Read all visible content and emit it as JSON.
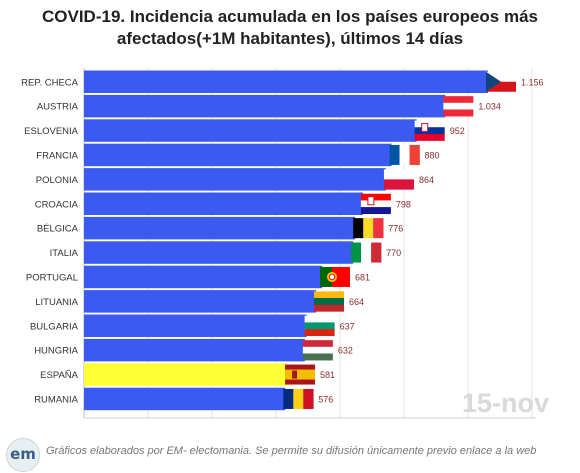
{
  "title_line1": "COVID-19. Incidencia acumulada en los países europeos más",
  "title_line2": "afectados(+1M habitantes), últimos 14 días",
  "date_stamp": "15-nov",
  "footer": {
    "logo": "em",
    "source": "Gráficos elaborados por EM- electomania. Se permite su difusión únicamente previo enlace a la web"
  },
  "colors": {
    "bar": "#3b5bf0",
    "highlight": "#ffff33",
    "value_label": "#8b2d2d",
    "grid": "#e2e2e2"
  },
  "chart_data": {
    "type": "bar",
    "orientation": "horizontal",
    "categories": [
      "REP. CHECA",
      "AUSTRIA",
      "ESLOVENIA",
      "FRANCIA",
      "POLONIA",
      "CROACIA",
      "BÉLGICA",
      "ITALIA",
      "PORTUGAL",
      "LITUANIA",
      "BULGARIA",
      "HUNGRIA",
      "ESPAÑA",
      "RUMANIA"
    ],
    "values": [
      1156,
      1034,
      952,
      880,
      864,
      798,
      776,
      770,
      681,
      664,
      637,
      632,
      581,
      576
    ],
    "value_labels": [
      "1.156",
      "1.034",
      "952",
      "880",
      "864",
      "798",
      "776",
      "770",
      "681",
      "664",
      "637",
      "632",
      "581",
      "576"
    ],
    "highlight": "ESPAÑA",
    "xlim": [
      0,
      1156
    ],
    "grid": "vertical",
    "flags": [
      {
        "icon": "czech-flag-icon",
        "type": "cz"
      },
      {
        "icon": "austria-flag-icon",
        "type": "h",
        "colors": [
          "#ed2939",
          "#ffffff",
          "#ed2939"
        ]
      },
      {
        "icon": "slovenia-flag-icon",
        "type": "h",
        "colors": [
          "#ffffff",
          "#0033a0",
          "#e4002b"
        ],
        "emblem": true
      },
      {
        "icon": "france-flag-icon",
        "type": "v",
        "colors": [
          "#0055a4",
          "#ffffff",
          "#ef4135"
        ]
      },
      {
        "icon": "poland-flag-icon",
        "type": "h",
        "colors": [
          "#ffffff",
          "#dc143c"
        ]
      },
      {
        "icon": "croatia-flag-icon",
        "type": "h",
        "colors": [
          "#ff0000",
          "#ffffff",
          "#171796"
        ],
        "emblem": true
      },
      {
        "icon": "belgium-flag-icon",
        "type": "v",
        "colors": [
          "#000000",
          "#fdda24",
          "#ef3340"
        ]
      },
      {
        "icon": "italy-flag-icon",
        "type": "v",
        "colors": [
          "#009246",
          "#ffffff",
          "#ce2b37"
        ]
      },
      {
        "icon": "portugal-flag-icon",
        "type": "pt"
      },
      {
        "icon": "lithuania-flag-icon",
        "type": "h",
        "colors": [
          "#fdb913",
          "#006a44",
          "#c1272d"
        ]
      },
      {
        "icon": "bulgaria-flag-icon",
        "type": "h",
        "colors": [
          "#ffffff",
          "#00966e",
          "#d62612"
        ]
      },
      {
        "icon": "hungary-flag-icon",
        "type": "h",
        "colors": [
          "#ce2939",
          "#ffffff",
          "#477050"
        ]
      },
      {
        "icon": "spain-flag-icon",
        "type": "es"
      },
      {
        "icon": "romania-flag-icon",
        "type": "v",
        "colors": [
          "#002b7f",
          "#fcd116",
          "#ce1126"
        ]
      }
    ]
  }
}
